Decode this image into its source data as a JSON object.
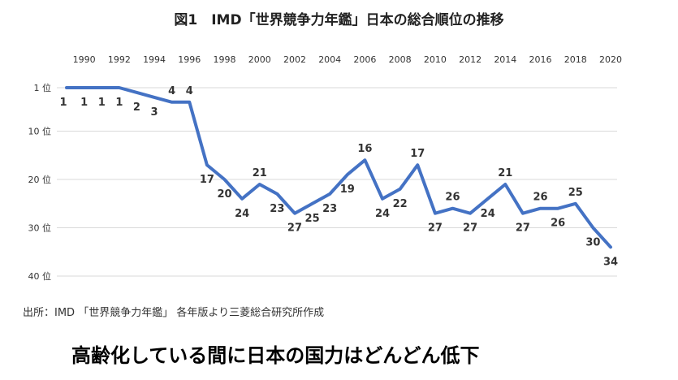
{
  "title": "図1　IMD「世界競争力年鑑」日本の総合順位の推移",
  "source": "出所：IMD 「世界競争力年鑑」 各年版より三菱総合研究所作成",
  "caption": "高齢化している間に日本の国力はどんどん低下",
  "colors": {
    "line": "#4472c4",
    "grid": "#d9d9d9",
    "text": "#333333"
  },
  "chart_data": {
    "type": "line",
    "title": "図1　IMD「世界競争力年鑑」日本の総合順位の推移",
    "x_ticks": [
      "1990",
      "1992",
      "1994",
      "1996",
      "1998",
      "2000",
      "2002",
      "2004",
      "2006",
      "2008",
      "2010",
      "2012",
      "2014",
      "2016",
      "2018",
      "2020"
    ],
    "y_ticks": [
      "1 位",
      "10 位",
      "20 位",
      "30 位",
      "40 位"
    ],
    "y_tick_values": [
      1,
      10,
      20,
      30,
      40
    ],
    "x_range": [
      1989,
      2020
    ],
    "y_range": [
      1,
      40
    ],
    "y_inverted": true,
    "x_axis_position": "top",
    "series": [
      {
        "name": "日本の総合順位",
        "x": [
          1989,
          1990,
          1991,
          1992,
          1993,
          1994,
          1995,
          1996,
          1997,
          1998,
          1999,
          2000,
          2001,
          2002,
          2003,
          2004,
          2005,
          2006,
          2007,
          2008,
          2009,
          2010,
          2011,
          2012,
          2013,
          2014,
          2015,
          2016,
          2017,
          2018,
          2019,
          2020
        ],
        "values": [
          1,
          1,
          1,
          1,
          2,
          3,
          4,
          4,
          17,
          20,
          24,
          21,
          23,
          27,
          25,
          23,
          19,
          16,
          24,
          22,
          17,
          27,
          26,
          27,
          24,
          21,
          27,
          26,
          26,
          25,
          30,
          34
        ]
      }
    ]
  }
}
